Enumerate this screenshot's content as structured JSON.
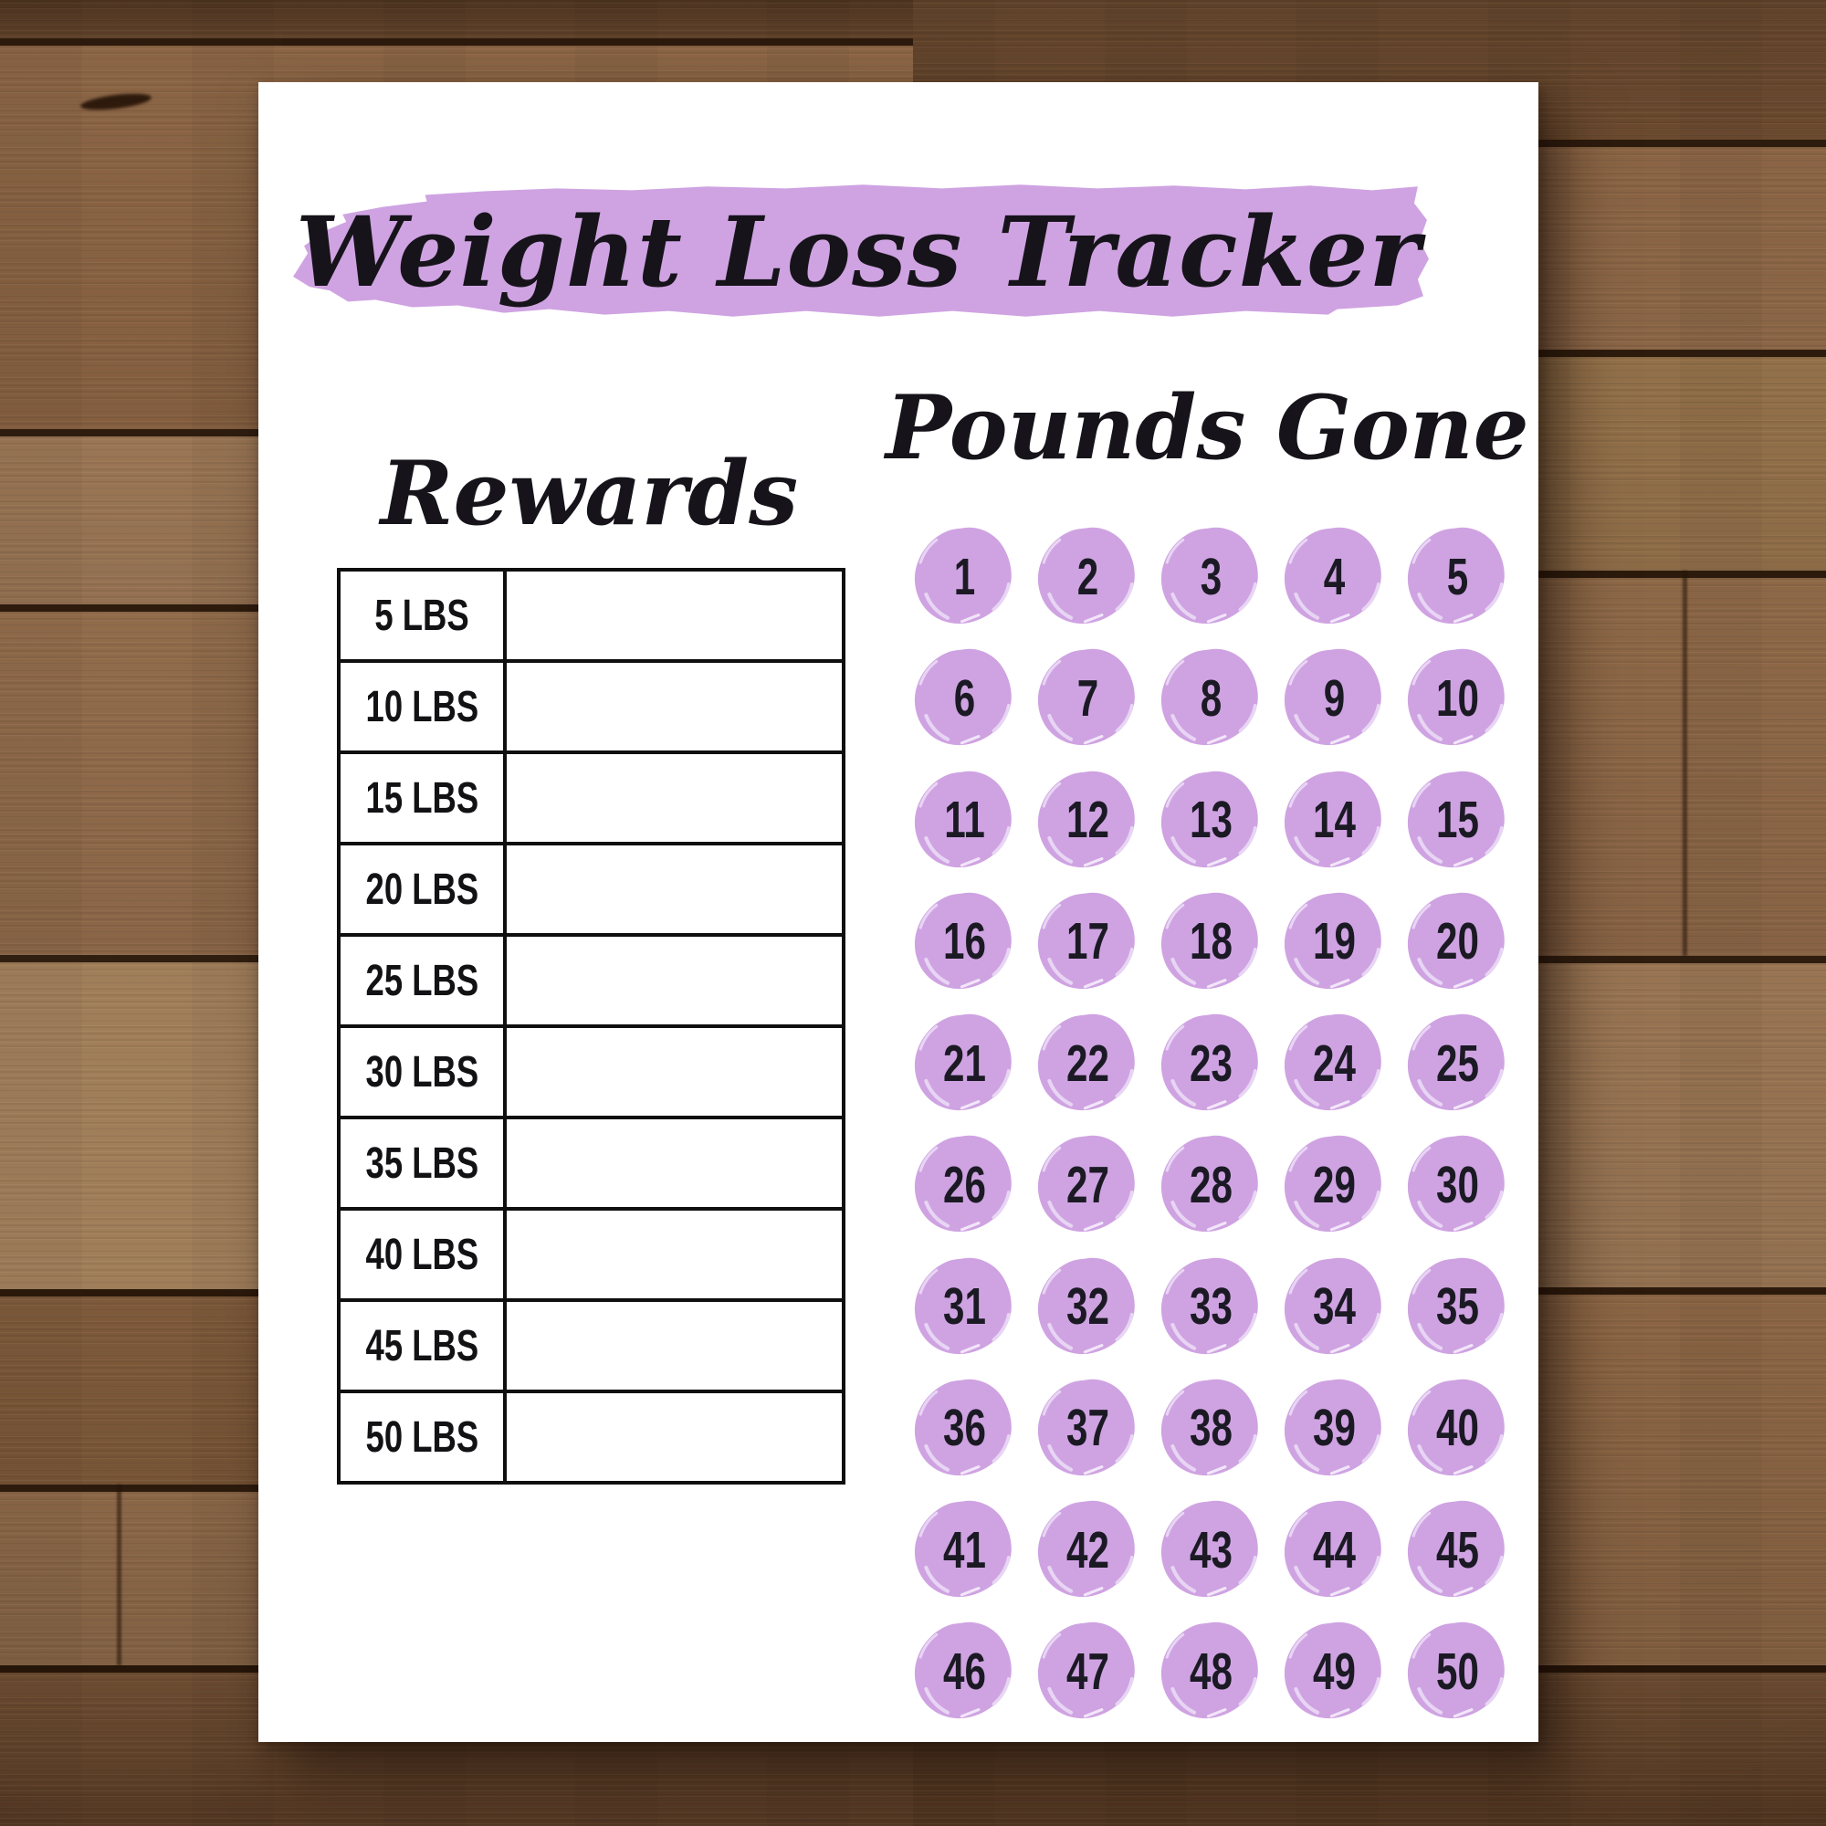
{
  "title": "Weight Loss Tracker",
  "rewards": {
    "heading": "Rewards",
    "rows": [
      {
        "milestone": "5 LBS",
        "reward": ""
      },
      {
        "milestone": "10 LBS",
        "reward": ""
      },
      {
        "milestone": "15 LBS",
        "reward": ""
      },
      {
        "milestone": "20 LBS",
        "reward": ""
      },
      {
        "milestone": "25 LBS",
        "reward": ""
      },
      {
        "milestone": "30 LBS",
        "reward": ""
      },
      {
        "milestone": "35 LBS",
        "reward": ""
      },
      {
        "milestone": "40 LBS",
        "reward": ""
      },
      {
        "milestone": "45 LBS",
        "reward": ""
      },
      {
        "milestone": "50 LBS",
        "reward": ""
      }
    ]
  },
  "pounds_gone": {
    "heading": "Pounds Gone",
    "numbers": [
      1,
      2,
      3,
      4,
      5,
      6,
      7,
      8,
      9,
      10,
      11,
      12,
      13,
      14,
      15,
      16,
      17,
      18,
      19,
      20,
      21,
      22,
      23,
      24,
      25,
      26,
      27,
      28,
      29,
      30,
      31,
      32,
      33,
      34,
      35,
      36,
      37,
      38,
      39,
      40,
      41,
      42,
      43,
      44,
      45,
      46,
      47,
      48,
      49,
      50
    ]
  },
  "colors": {
    "accent_purple": "#cfa3e2",
    "accent_purple_light": "#e8d5f4",
    "ink": "#16141a",
    "paper": "#ffffff",
    "wood_base": "#8a6342"
  }
}
